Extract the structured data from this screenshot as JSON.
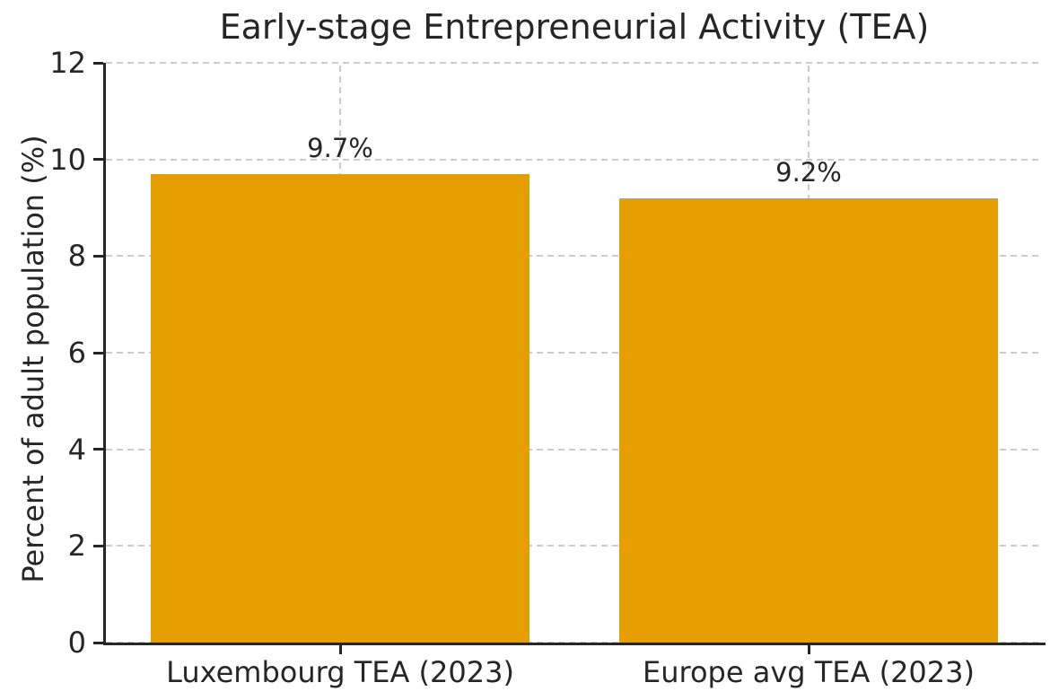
{
  "title": "Early-stage Entrepreneurial Activity (TEA)",
  "colors": {
    "bar": "#E69F00",
    "grid": "#cbcbcb",
    "axis": "#262626",
    "text": "#262626",
    "background": "#ffffff"
  },
  "chart_data": {
    "type": "bar",
    "title": "Early-stage Entrepreneurial Activity (TEA)",
    "categories": [
      "Luxembourg TEA (2023)",
      "Europe avg TEA (2023)"
    ],
    "values": [
      9.7,
      9.2
    ],
    "value_labels": [
      "9.7%",
      "9.2%"
    ],
    "xlabel": "",
    "ylabel": "Percent of adult population (%)",
    "ylim": [
      0,
      12
    ],
    "yticks": [
      0,
      2,
      4,
      6,
      8,
      10,
      12
    ],
    "bar_color": "#E69F00",
    "bar_width_fraction": 0.81,
    "grid": "dashed, horizontal and vertical",
    "legend": "none"
  }
}
